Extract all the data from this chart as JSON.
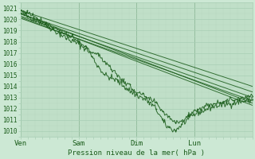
{
  "title": "",
  "xlabel": "Pression niveau de la mer( hPa )",
  "background_color": "#cce8d4",
  "plot_bg_color": "#c0dfc8",
  "grid_major_color": "#a8ceb4",
  "grid_minor_color": "#b8d8c0",
  "line_color": "#1a5c1a",
  "ylim": [
    1009.5,
    1021.5
  ],
  "yticks": [
    1010,
    1011,
    1012,
    1013,
    1014,
    1015,
    1016,
    1017,
    1018,
    1019,
    1020,
    1021
  ],
  "xtick_labels": [
    "Ven",
    "Sam",
    "Dim",
    "Lun"
  ],
  "day_ticks": [
    0,
    24,
    48,
    72
  ],
  "x_max": 96
}
